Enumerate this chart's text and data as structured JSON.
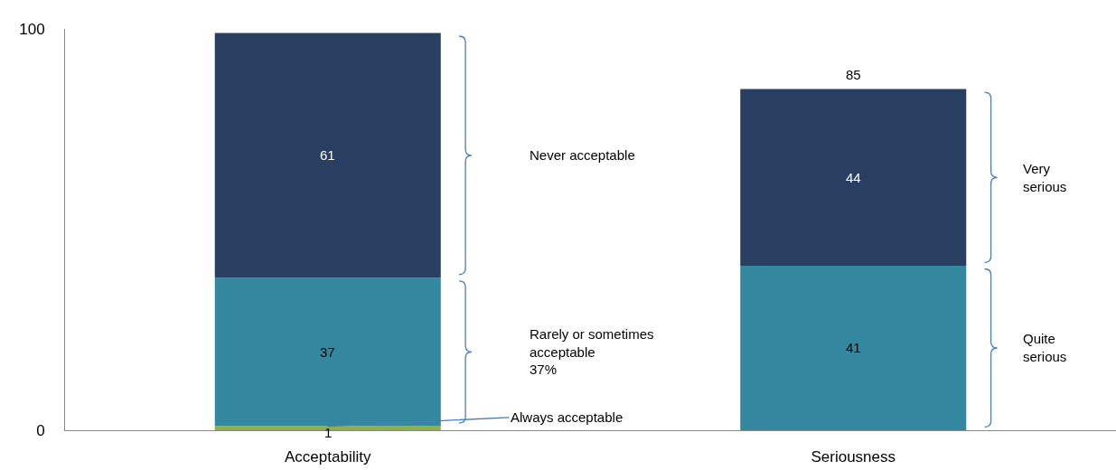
{
  "chart_data": {
    "type": "bar",
    "stacked": true,
    "categories": [
      "Acceptability",
      "Seriousness"
    ],
    "series": [
      {
        "color": "#8db04a",
        "values": [
          1,
          0
        ],
        "value_labels": [
          "1",
          null
        ]
      },
      {
        "color": "#33879f",
        "values": [
          37,
          41
        ],
        "value_labels": [
          "37",
          "41"
        ]
      },
      {
        "color": "#283f61",
        "values": [
          61,
          44
        ],
        "value_labels": [
          "61",
          "44"
        ]
      }
    ],
    "totals": [
      null,
      "85"
    ],
    "ylim": [
      0,
      100
    ],
    "yticks": [
      0,
      100
    ],
    "annotations": [
      "Never acceptable",
      "Rarely or sometimes\nacceptable\n37%",
      {
        "text": "Always acceptable",
        "x": "Acceptability",
        "y": 1
      },
      "Very\nserious",
      "Quite\nserious"
    ]
  }
}
